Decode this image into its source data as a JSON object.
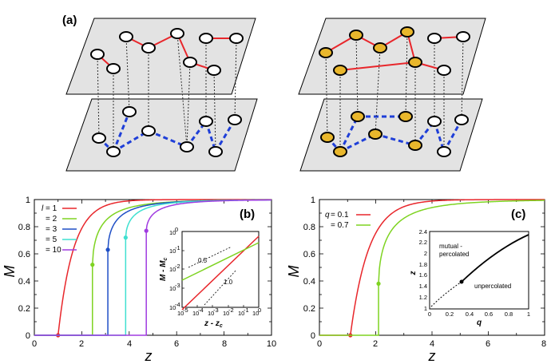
{
  "panel_a": {
    "label": "(a)"
  },
  "panel_b": {
    "label": "(b)",
    "xlabel": "z",
    "ylabel": "M",
    "xticks": [
      "0",
      "2",
      "4",
      "6",
      "8",
      "10"
    ],
    "yticks": [
      "0",
      "0.2",
      "0.4",
      "0.6",
      "0.8",
      "1"
    ],
    "legend": {
      "prefix_l": "l",
      "entries": [
        "= 1",
        "= 2",
        "= 3",
        "= 5",
        "= 10"
      ]
    },
    "inset": {
      "xlabel": "z - z",
      "xlabel_sub": "c",
      "ylabel": "M - M",
      "ylabel_sub": "c",
      "slope_a": "0.5",
      "slope_b": "1.0",
      "xticks": [
        "10",
        "10",
        "10",
        "10",
        "10",
        "10"
      ],
      "xexp": [
        "-5",
        "-4",
        "-3",
        "-2",
        "-1",
        "0"
      ],
      "yticks": [
        "10",
        "10",
        "10",
        "10",
        "10"
      ],
      "yexp": [
        "-4",
        "-3",
        "-2",
        "-1",
        "0"
      ]
    }
  },
  "panel_c": {
    "label": "(c)",
    "xlabel": "z",
    "ylabel": "M",
    "xticks": [
      "0",
      "2",
      "4",
      "6",
      "8"
    ],
    "yticks": [
      "0",
      "0.2",
      "0.4",
      "0.6",
      "0.8",
      "1"
    ],
    "legend": {
      "prefix_q": "q",
      "entries": [
        "= 0.1",
        "= 0.7"
      ]
    },
    "inset": {
      "xlabel": "q",
      "ylabel": "z",
      "region_upper_1": "mutual -",
      "region_upper_2": "percolated",
      "region_lower": "unpercolated",
      "xticks": [
        "0",
        "0.2",
        "0.4",
        "0.6",
        "0.8",
        "1"
      ],
      "yticks": [
        "1",
        "1.2",
        "1.4",
        "1.6",
        "1.8",
        "2",
        "2.2",
        "2.4"
      ]
    }
  },
  "chart_data": [
    {
      "type": "line",
      "panel": "b",
      "title": "",
      "xlabel": "z",
      "ylabel": "M",
      "xlim": [
        0,
        10
      ],
      "ylim": [
        0,
        1
      ],
      "series": [
        {
          "name": "l = 1",
          "color": "#e8262b",
          "zc": 1.0,
          "mc": 0.0
        },
        {
          "name": "l = 2",
          "color": "#7ed321",
          "zc": 2.45,
          "mc": 0.52
        },
        {
          "name": "l = 3",
          "color": "#1f4fc6",
          "zc": 3.1,
          "mc": 0.63
        },
        {
          "name": "l = 5",
          "color": "#3fe0d0",
          "zc": 3.85,
          "mc": 0.72
        },
        {
          "name": "l = 10",
          "color": "#a03be0",
          "zc": 4.72,
          "mc": 0.77
        }
      ]
    },
    {
      "type": "line",
      "panel": "c",
      "title": "",
      "xlabel": "z",
      "ylabel": "M",
      "xlim": [
        0,
        8
      ],
      "ylim": [
        0,
        1
      ],
      "series": [
        {
          "name": "q = 0.1",
          "color": "#e8262b",
          "zc": 1.1,
          "mc": 0.0
        },
        {
          "name": "q = 0.7",
          "color": "#7ed321",
          "zc": 2.1,
          "mc": 0.38
        }
      ]
    }
  ]
}
